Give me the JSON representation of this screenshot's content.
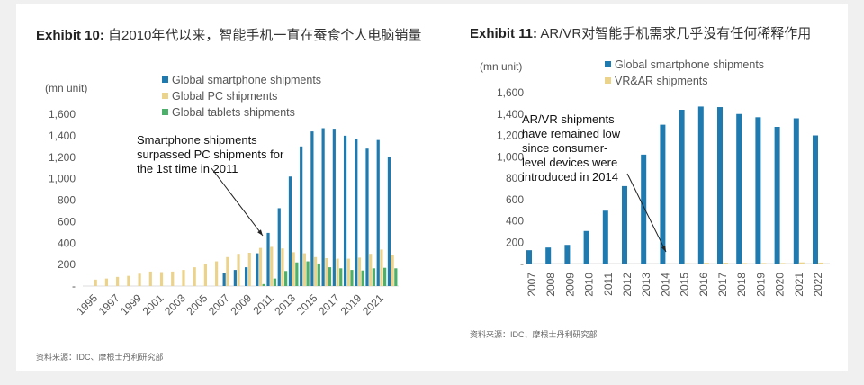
{
  "left": {
    "title_label": "Exhibit 10:",
    "title_text": "自2010年代以来，智能手机一直在蚕食个人电脑销量",
    "source": "资料来源：IDC、摩根士丹利研究部"
  },
  "right": {
    "title_label": "Exhibit 11:",
    "title_text": "AR/VR对智能手机需求几乎没有任何稀释作用",
    "source": "资料来源：IDC、摩根士丹利研究部"
  },
  "colors": {
    "smartphone": "#1f7ab0",
    "pc": "#ecd38c",
    "tablet": "#4caf6a",
    "vr": "#ecd38c"
  },
  "chart_data": [
    {
      "type": "bar",
      "ylabel": "(mn unit)",
      "ylim": [
        0,
        1600
      ],
      "yticks": [
        "-",
        "200",
        "400",
        "600",
        "800",
        "1,000",
        "1,200",
        "1,400",
        "1,600"
      ],
      "x": [
        1995,
        1996,
        1997,
        1998,
        1999,
        2000,
        2001,
        2002,
        2003,
        2004,
        2005,
        2006,
        2007,
        2008,
        2009,
        2010,
        2011,
        2012,
        2013,
        2014,
        2015,
        2016,
        2017,
        2018,
        2019,
        2020,
        2021,
        2022
      ],
      "xtick_labels": [
        "1995",
        "1997",
        "1999",
        "2001",
        "2003",
        "2005",
        "2007",
        "2009",
        "2011",
        "2013",
        "2015",
        "2017",
        "2019",
        "2021"
      ],
      "annotation": "Smartphone shipments surpassed PC shipments for the 1st time in 2011",
      "legend": "top-center",
      "series": [
        {
          "name": "Global smartphone shipments",
          "values": [
            null,
            null,
            null,
            null,
            null,
            null,
            null,
            null,
            null,
            null,
            null,
            null,
            125,
            150,
            175,
            305,
            495,
            725,
            1020,
            1300,
            1440,
            1470,
            1465,
            1400,
            1370,
            1280,
            1360,
            1200
          ]
        },
        {
          "name": "Global PC shipments",
          "values": [
            60,
            70,
            85,
            95,
            115,
            135,
            130,
            135,
            150,
            175,
            205,
            230,
            270,
            300,
            310,
            355,
            365,
            350,
            315,
            305,
            270,
            260,
            255,
            255,
            265,
            300,
            340,
            285
          ]
        },
        {
          "name": "Global tablets shipments",
          "values": [
            null,
            null,
            null,
            null,
            null,
            null,
            null,
            null,
            null,
            null,
            null,
            null,
            null,
            null,
            null,
            18,
            70,
            140,
            220,
            230,
            210,
            175,
            165,
            150,
            145,
            165,
            170,
            165
          ]
        }
      ]
    },
    {
      "type": "bar",
      "ylabel": "(mn unit)",
      "ylim": [
        0,
        1600
      ],
      "yticks": [
        "-",
        "200",
        "400",
        "600",
        "800",
        "1,000",
        "1,200",
        "1,400",
        "1,600"
      ],
      "x": [
        2007,
        2008,
        2009,
        2010,
        2011,
        2012,
        2013,
        2014,
        2015,
        2016,
        2017,
        2018,
        2019,
        2020,
        2021,
        2022
      ],
      "xtick_labels": [
        "2007",
        "2008",
        "2009",
        "2010",
        "2011",
        "2012",
        "2013",
        "2014",
        "2015",
        "2016",
        "2017",
        "2018",
        "2019",
        "2020",
        "2021",
        "2022"
      ],
      "annotation": "AR/VR shipments have remained low since consumer-level devices were introduced in 2014",
      "legend": "top-center",
      "series": [
        {
          "name": "Global smartphone shipments",
          "values": [
            125,
            150,
            175,
            305,
            495,
            725,
            1020,
            1300,
            1440,
            1470,
            1465,
            1400,
            1370,
            1280,
            1360,
            1200
          ]
        },
        {
          "name": "VR&AR shipments",
          "values": [
            0,
            0,
            0,
            0,
            0,
            0,
            0,
            1,
            3,
            7,
            8,
            5,
            5,
            5,
            11,
            9
          ]
        }
      ]
    }
  ]
}
